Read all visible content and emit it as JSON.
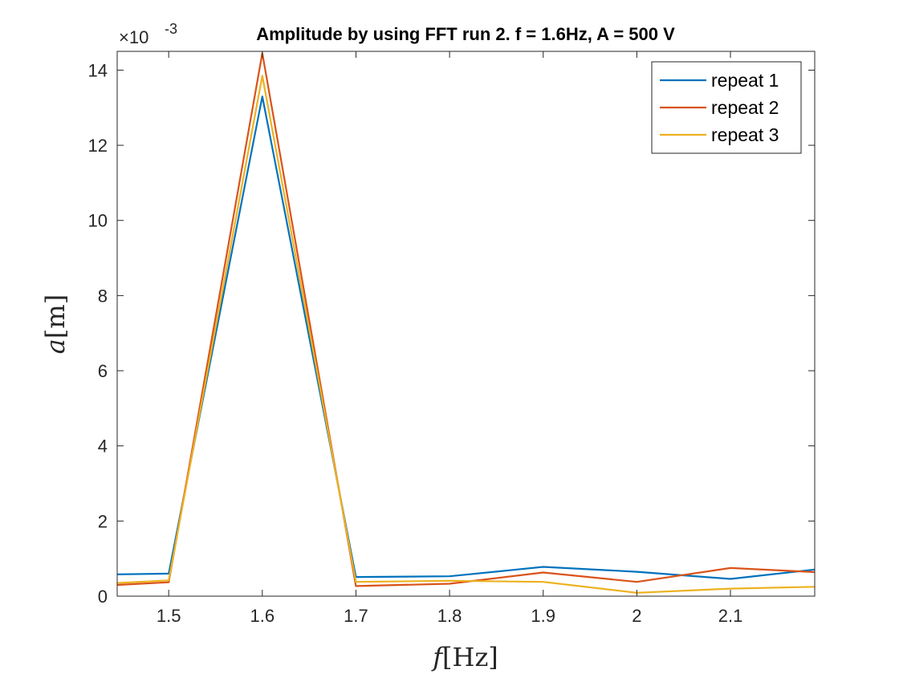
{
  "chart_data": {
    "type": "line",
    "title": "Amplitude by using FFT run 2. f = 1.6Hz, A = 500 V",
    "xlabel_var": "f",
    "xlabel_unit": "[Hz]",
    "ylabel_var": "a",
    "ylabel_unit": "[m]",
    "y_exponent_base": "×10",
    "y_exponent_power": "-3",
    "xlim": [
      1.445,
      2.19
    ],
    "ylim": [
      0,
      14.5
    ],
    "x_ticks": [
      1.5,
      1.6,
      1.7,
      1.8,
      1.9,
      2.0,
      2.1
    ],
    "x_tick_labels": [
      "1.5",
      "1.6",
      "1.7",
      "1.8",
      "1.9",
      "2",
      "2.1"
    ],
    "y_ticks": [
      0,
      2,
      4,
      6,
      8,
      10,
      12,
      14
    ],
    "y_tick_labels": [
      "0",
      "2",
      "4",
      "6",
      "8",
      "10",
      "12",
      "14"
    ],
    "grid": false,
    "legend_position": "top-right",
    "x": [
      1.445,
      1.5,
      1.6,
      1.7,
      1.8,
      1.9,
      2.0,
      2.1,
      2.19
    ],
    "series": [
      {
        "name": "repeat 1",
        "color": "#0072BD",
        "values": [
          0.58,
          0.6,
          13.3,
          0.51,
          0.53,
          0.78,
          0.65,
          0.46,
          0.71
        ]
      },
      {
        "name": "repeat 2",
        "color": "#D95319",
        "values": [
          0.3,
          0.37,
          14.45,
          0.27,
          0.33,
          0.63,
          0.38,
          0.75,
          0.64
        ]
      },
      {
        "name": "repeat 3",
        "color": "#EDB120",
        "values": [
          0.35,
          0.42,
          13.85,
          0.38,
          0.41,
          0.38,
          0.09,
          0.2,
          0.25
        ]
      }
    ]
  }
}
